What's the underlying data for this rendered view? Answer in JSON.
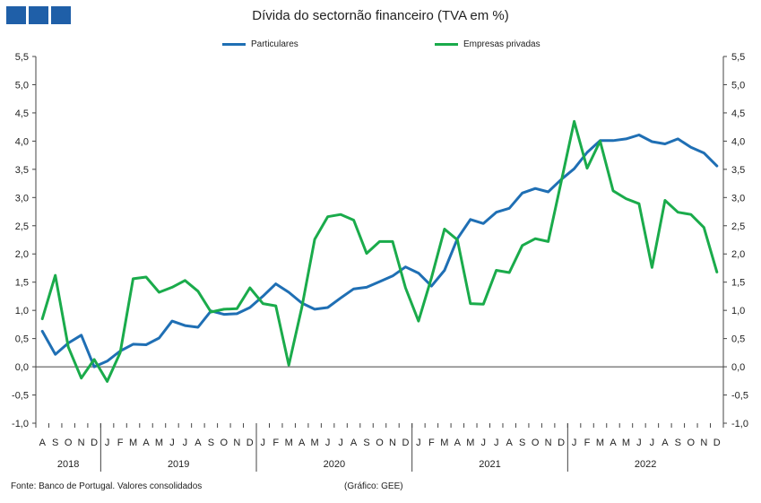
{
  "chart_data": {
    "type": "line",
    "title": "Dívida do sectornão financeiro (TVA em %)",
    "ylim": [
      -1.0,
      5.5
    ],
    "yticks": [
      "5,5",
      "5,0",
      "4,5",
      "4,0",
      "3,5",
      "3,0",
      "2,5",
      "2,0",
      "1,5",
      "1,0",
      "0,5",
      "0,0",
      "-0,5",
      "-1,0"
    ],
    "x": [
      "A",
      "S",
      "O",
      "N",
      "D",
      "J",
      "F",
      "M",
      "A",
      "M",
      "J",
      "J",
      "A",
      "S",
      "O",
      "N",
      "D",
      "J",
      "F",
      "M",
      "A",
      "M",
      "J",
      "J",
      "A",
      "S",
      "O",
      "N",
      "D",
      "J",
      "F",
      "M",
      "A",
      "M",
      "J",
      "J",
      "A",
      "S",
      "O",
      "N",
      "D",
      "J",
      "F",
      "M",
      "A",
      "M",
      "J",
      "J",
      "A",
      "S",
      "O",
      "N",
      "D"
    ],
    "years": [
      {
        "label": "2018",
        "start": 0,
        "end": 5
      },
      {
        "label": "2019",
        "start": 5,
        "end": 17
      },
      {
        "label": "2020",
        "start": 17,
        "end": 29
      },
      {
        "label": "2021",
        "start": 29,
        "end": 41
      },
      {
        "label": "2022",
        "start": 41,
        "end": 53
      }
    ],
    "series": [
      {
        "name": "Particulares",
        "color": "#1f6fb4",
        "values": [
          0.63,
          0.22,
          0.42,
          0.56,
          0.0,
          0.1,
          0.28,
          0.4,
          0.39,
          0.51,
          0.81,
          0.73,
          0.7,
          0.99,
          0.93,
          0.94,
          1.05,
          1.25,
          1.47,
          1.32,
          1.13,
          1.02,
          1.05,
          1.22,
          1.38,
          1.41,
          1.51,
          1.61,
          1.77,
          1.66,
          1.43,
          1.71,
          2.27,
          2.61,
          2.54,
          2.74,
          2.81,
          3.08,
          3.16,
          3.1,
          3.32,
          3.51,
          3.8,
          4.01,
          4.01,
          4.04,
          4.11,
          3.99,
          3.95,
          4.04,
          3.89,
          3.79,
          3.56
        ]
      },
      {
        "name": "Empresas privadas",
        "color": "#1aab4b",
        "values": [
          0.85,
          1.62,
          0.35,
          -0.2,
          0.13,
          -0.26,
          0.25,
          1.56,
          1.59,
          1.32,
          1.41,
          1.53,
          1.34,
          0.97,
          1.02,
          1.03,
          1.4,
          1.12,
          1.08,
          0.03,
          1.05,
          2.26,
          2.66,
          2.7,
          2.6,
          2.01,
          2.22,
          2.22,
          1.4,
          0.81,
          1.58,
          2.44,
          2.25,
          1.12,
          1.11,
          1.71,
          1.67,
          2.15,
          2.27,
          2.22,
          3.28,
          4.35,
          3.52,
          4.0,
          3.12,
          2.98,
          2.89,
          1.76,
          2.95,
          2.74,
          2.7,
          2.47,
          1.68
        ]
      }
    ]
  },
  "footer": {
    "source": "Fonte:  Banco de Portugal.  Valores  consolidados",
    "graphic": "(Gráfico:  GEE)"
  },
  "colors": {
    "brand": "#1f5fa8",
    "axis": "#444444"
  }
}
